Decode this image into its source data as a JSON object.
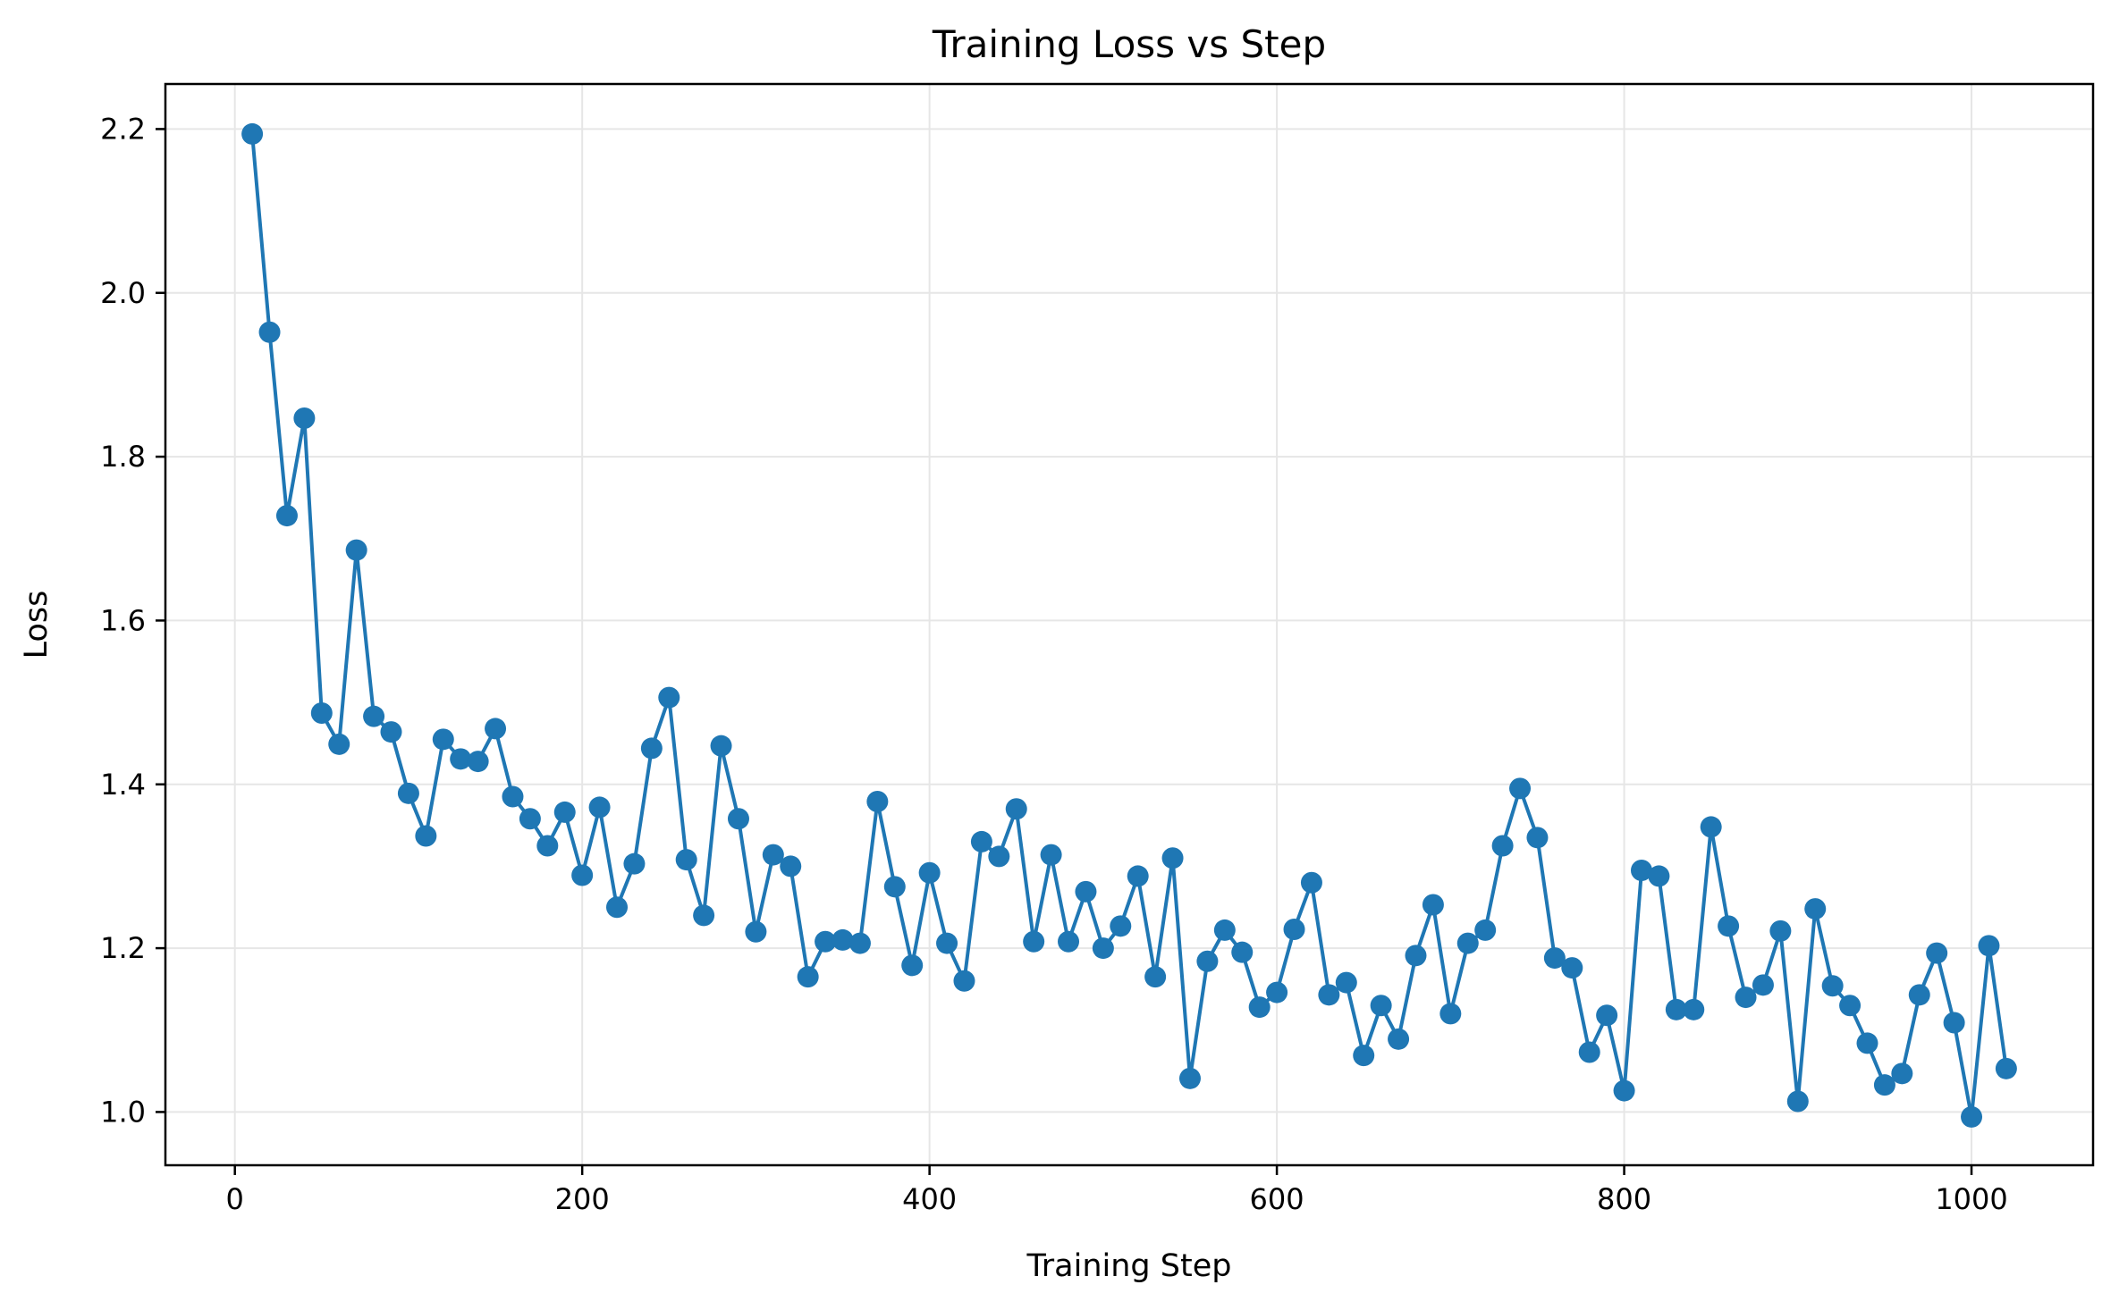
{
  "chart_data": {
    "type": "line",
    "title": "Training Loss vs Step",
    "xlabel": "Training Step",
    "ylabel": "Loss",
    "xlim": [
      -40,
      1070
    ],
    "ylim": [
      0.935,
      2.255
    ],
    "xticks": [
      0,
      200,
      400,
      600,
      800,
      1000
    ],
    "yticks": [
      1.0,
      1.2,
      1.4,
      1.6,
      1.8,
      2.0,
      2.2
    ],
    "xtick_labels": [
      "0",
      "200",
      "400",
      "600",
      "800",
      "1000"
    ],
    "ytick_labels": [
      "1.0",
      "1.2",
      "1.4",
      "1.6",
      "1.8",
      "2.0",
      "2.2"
    ],
    "grid": true,
    "markers": true,
    "line_color": "#1f77b4",
    "grid_color": "#e6e6e6",
    "series": [
      {
        "x": [
          10,
          20,
          30,
          40,
          50,
          60,
          70,
          80,
          90,
          100,
          110,
          120,
          130,
          140,
          150,
          160,
          170,
          180,
          190,
          200,
          210,
          220,
          230,
          240,
          250,
          260,
          270,
          280,
          290,
          300,
          310,
          320,
          330,
          340,
          350,
          360,
          370,
          380,
          390,
          400,
          410,
          420,
          430,
          440,
          450,
          460,
          470,
          480,
          490,
          500,
          510,
          520,
          530,
          540,
          550,
          560,
          570,
          580,
          590,
          600,
          610,
          620,
          630,
          640,
          650,
          660,
          670,
          680,
          690,
          700,
          710,
          720,
          730,
          740,
          750,
          760,
          770,
          780,
          790,
          800,
          810,
          820,
          830,
          840,
          850,
          860,
          870,
          880,
          890,
          900,
          910,
          920,
          930,
          940,
          950,
          960,
          970,
          980,
          990,
          1000,
          1010,
          1020
        ],
        "y": [
          2.194,
          1.952,
          1.728,
          1.847,
          1.487,
          1.449,
          1.686,
          1.483,
          1.464,
          1.389,
          1.337,
          1.455,
          1.431,
          1.428,
          1.468,
          1.385,
          1.358,
          1.325,
          1.366,
          1.289,
          1.372,
          1.25,
          1.303,
          1.444,
          1.506,
          1.308,
          1.24,
          1.447,
          1.358,
          1.22,
          1.314,
          1.3,
          1.165,
          1.208,
          1.21,
          1.206,
          1.379,
          1.275,
          1.179,
          1.292,
          1.206,
          1.16,
          1.33,
          1.312,
          1.37,
          1.208,
          1.314,
          1.208,
          1.269,
          1.2,
          1.227,
          1.288,
          1.165,
          1.31,
          1.041,
          1.184,
          1.222,
          1.195,
          1.128,
          1.146,
          1.223,
          1.28,
          1.143,
          1.158,
          1.069,
          1.13,
          1.089,
          1.191,
          1.253,
          1.12,
          1.206,
          1.222,
          1.325,
          1.395,
          1.335,
          1.188,
          1.176,
          1.073,
          1.118,
          1.026,
          1.295,
          1.288,
          1.125,
          1.125,
          1.348,
          1.227,
          1.14,
          1.155,
          1.221,
          1.013,
          1.248,
          1.154,
          1.13,
          1.084,
          1.033,
          1.047,
          1.143,
          1.194,
          1.109,
          0.994,
          1.203,
          1.053
        ]
      }
    ]
  }
}
